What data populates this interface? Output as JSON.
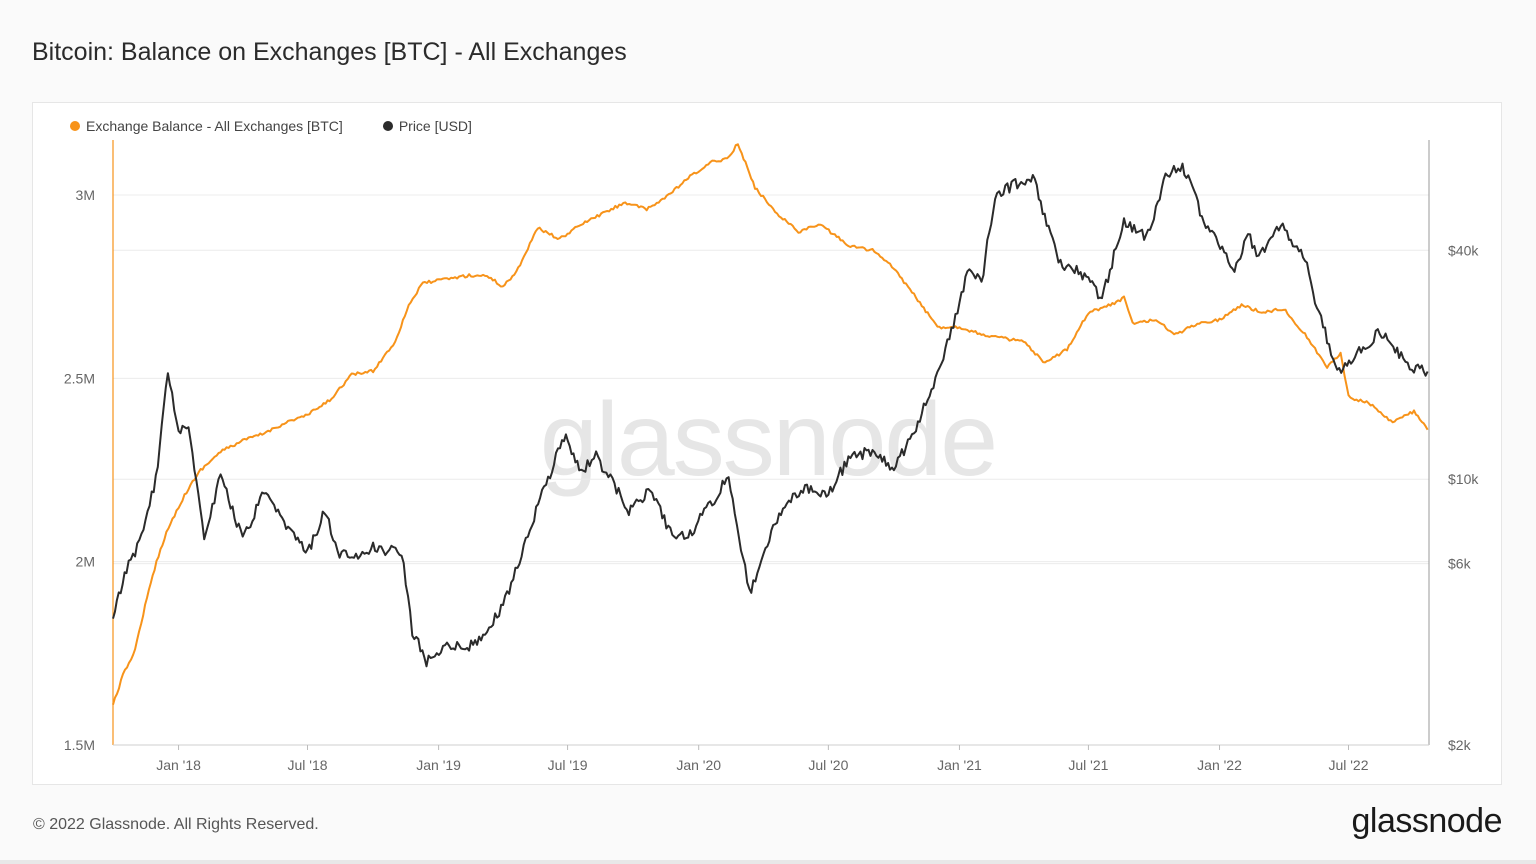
{
  "title": "Bitcoin: Balance on Exchanges [BTC] - All Exchanges",
  "legend": {
    "balance_label": "Exchange Balance - All Exchanges [BTC]",
    "price_label": "Price [USD]"
  },
  "watermark": "glassnode",
  "footer": {
    "copyright": "© 2022 Glassnode. All Rights Reserved.",
    "logo": "glassnode"
  },
  "colors": {
    "balance": "#f7931a",
    "price": "#2b2b2b",
    "grid": "#ececec"
  },
  "chart_data": {
    "type": "line",
    "title": "Bitcoin: Balance on Exchanges [BTC] - All Exchanges",
    "x_ticks": [
      "Jan '18",
      "Jul '18",
      "Jan '19",
      "Jul '19",
      "Jan '20",
      "Jul '20",
      "Jan '21",
      "Jul '21",
      "Jan '22",
      "Jul '22"
    ],
    "y_left": {
      "ticks": [
        "1.5M",
        "2M",
        "2.5M",
        "3M"
      ],
      "values": [
        1500000,
        2000000,
        2500000,
        3000000
      ],
      "range": [
        1500000,
        3150000
      ]
    },
    "y_right": {
      "ticks": [
        "$2k",
        "$6k",
        "$10k",
        "$40k"
      ],
      "values": [
        2000,
        6000,
        10000,
        40000
      ],
      "scale": "log",
      "range": [
        2000,
        78000
      ]
    },
    "grid": true,
    "legend_position": "top-left",
    "series": [
      {
        "name": "Exchange Balance - All Exchanges [BTC]",
        "axis": "left",
        "points": [
          [
            "2017-10-01",
            1610000
          ],
          [
            "2017-10-15",
            1690000
          ],
          [
            "2017-11-01",
            1760000
          ],
          [
            "2017-11-15",
            1880000
          ],
          [
            "2017-12-01",
            2000000
          ],
          [
            "2017-12-15",
            2080000
          ],
          [
            "2018-01-01",
            2150000
          ],
          [
            "2018-01-15",
            2200000
          ],
          [
            "2018-02-01",
            2250000
          ],
          [
            "2018-03-01",
            2300000
          ],
          [
            "2018-04-01",
            2330000
          ],
          [
            "2018-05-01",
            2350000
          ],
          [
            "2018-06-01",
            2380000
          ],
          [
            "2018-07-01",
            2400000
          ],
          [
            "2018-08-01",
            2440000
          ],
          [
            "2018-09-01",
            2510000
          ],
          [
            "2018-10-01",
            2520000
          ],
          [
            "2018-11-01",
            2600000
          ],
          [
            "2018-11-20",
            2700000
          ],
          [
            "2018-12-10",
            2760000
          ],
          [
            "2019-01-10",
            2770000
          ],
          [
            "2019-02-10",
            2780000
          ],
          [
            "2019-03-10",
            2780000
          ],
          [
            "2019-04-01",
            2750000
          ],
          [
            "2019-04-20",
            2790000
          ],
          [
            "2019-05-20",
            2910000
          ],
          [
            "2019-06-20",
            2880000
          ],
          [
            "2019-07-20",
            2920000
          ],
          [
            "2019-08-20",
            2950000
          ],
          [
            "2019-09-20",
            2980000
          ],
          [
            "2019-10-20",
            2960000
          ],
          [
            "2019-11-20",
            3000000
          ],
          [
            "2019-12-20",
            3050000
          ],
          [
            "2020-01-20",
            3090000
          ],
          [
            "2020-02-10",
            3100000
          ],
          [
            "2020-02-25",
            3140000
          ],
          [
            "2020-03-20",
            3020000
          ],
          [
            "2020-04-20",
            2950000
          ],
          [
            "2020-05-20",
            2900000
          ],
          [
            "2020-06-20",
            2920000
          ],
          [
            "2020-07-10",
            2890000
          ],
          [
            "2020-08-01",
            2860000
          ],
          [
            "2020-09-01",
            2850000
          ],
          [
            "2020-10-01",
            2800000
          ],
          [
            "2020-11-01",
            2720000
          ],
          [
            "2020-12-01",
            2640000
          ],
          [
            "2021-01-01",
            2640000
          ],
          [
            "2021-02-01",
            2620000
          ],
          [
            "2021-03-01",
            2610000
          ],
          [
            "2021-04-01",
            2600000
          ],
          [
            "2021-05-01",
            2540000
          ],
          [
            "2021-06-01",
            2580000
          ],
          [
            "2021-07-01",
            2680000
          ],
          [
            "2021-08-01",
            2700000
          ],
          [
            "2021-08-20",
            2720000
          ],
          [
            "2021-09-01",
            2650000
          ],
          [
            "2021-10-01",
            2660000
          ],
          [
            "2021-11-01",
            2620000
          ],
          [
            "2021-12-01",
            2650000
          ],
          [
            "2022-01-01",
            2660000
          ],
          [
            "2022-02-01",
            2700000
          ],
          [
            "2022-03-01",
            2680000
          ],
          [
            "2022-04-01",
            2690000
          ],
          [
            "2022-05-01",
            2620000
          ],
          [
            "2022-06-01",
            2530000
          ],
          [
            "2022-06-20",
            2570000
          ],
          [
            "2022-07-01",
            2450000
          ],
          [
            "2022-08-01",
            2430000
          ],
          [
            "2022-09-01",
            2380000
          ],
          [
            "2022-10-01",
            2410000
          ],
          [
            "2022-10-20",
            2360000
          ]
        ]
      },
      {
        "name": "Price [USD]",
        "axis": "right",
        "points": [
          [
            "2017-10-01",
            4300
          ],
          [
            "2017-10-20",
            5800
          ],
          [
            "2017-11-10",
            7000
          ],
          [
            "2017-11-30",
            10000
          ],
          [
            "2017-12-17",
            19000
          ],
          [
            "2018-01-01",
            13500
          ],
          [
            "2018-01-15",
            14000
          ],
          [
            "2018-02-06",
            7000
          ],
          [
            "2018-03-01",
            10300
          ],
          [
            "2018-04-01",
            6900
          ],
          [
            "2018-05-01",
            9200
          ],
          [
            "2018-06-01",
            7500
          ],
          [
            "2018-07-01",
            6400
          ],
          [
            "2018-07-25",
            8200
          ],
          [
            "2018-08-15",
            6300
          ],
          [
            "2018-09-10",
            6300
          ],
          [
            "2018-10-01",
            6600
          ],
          [
            "2018-11-10",
            6400
          ],
          [
            "2018-11-25",
            4000
          ],
          [
            "2018-12-15",
            3300
          ],
          [
            "2019-01-10",
            3700
          ],
          [
            "2019-02-10",
            3600
          ],
          [
            "2019-03-10",
            3900
          ],
          [
            "2019-04-10",
            5100
          ],
          [
            "2019-05-15",
            8000
          ],
          [
            "2019-06-26",
            13000
          ],
          [
            "2019-07-20",
            10500
          ],
          [
            "2019-08-10",
            11500
          ],
          [
            "2019-09-25",
            8300
          ],
          [
            "2019-10-25",
            9400
          ],
          [
            "2019-11-25",
            7100
          ],
          [
            "2019-12-20",
            7200
          ],
          [
            "2020-01-20",
            8700
          ],
          [
            "2020-02-12",
            10300
          ],
          [
            "2020-03-12",
            5000
          ],
          [
            "2020-04-01",
            6400
          ],
          [
            "2020-05-01",
            8700
          ],
          [
            "2020-06-01",
            9500
          ],
          [
            "2020-07-01",
            9200
          ],
          [
            "2020-08-01",
            11500
          ],
          [
            "2020-09-01",
            11800
          ],
          [
            "2020-10-01",
            10600
          ],
          [
            "2020-11-01",
            13700
          ],
          [
            "2020-12-01",
            19000
          ],
          [
            "2021-01-01",
            29000
          ],
          [
            "2021-01-15",
            36000
          ],
          [
            "2021-02-01",
            33000
          ],
          [
            "2021-02-20",
            56000
          ],
          [
            "2021-03-15",
            59000
          ],
          [
            "2021-04-14",
            63000
          ],
          [
            "2021-05-20",
            37000
          ],
          [
            "2021-06-20",
            35000
          ],
          [
            "2021-07-20",
            30000
          ],
          [
            "2021-08-20",
            48000
          ],
          [
            "2021-09-20",
            43000
          ],
          [
            "2021-10-20",
            64000
          ],
          [
            "2021-11-10",
            67000
          ],
          [
            "2021-12-10",
            48000
          ],
          [
            "2022-01-22",
            36000
          ],
          [
            "2022-02-10",
            44000
          ],
          [
            "2022-02-25",
            38000
          ],
          [
            "2022-03-28",
            47000
          ],
          [
            "2022-05-01",
            38000
          ],
          [
            "2022-05-15",
            29000
          ],
          [
            "2022-06-18",
            19000
          ],
          [
            "2022-07-10",
            21000
          ],
          [
            "2022-08-14",
            24500
          ],
          [
            "2022-09-10",
            21500
          ],
          [
            "2022-10-01",
            19500
          ],
          [
            "2022-10-20",
            19200
          ]
        ]
      }
    ]
  }
}
